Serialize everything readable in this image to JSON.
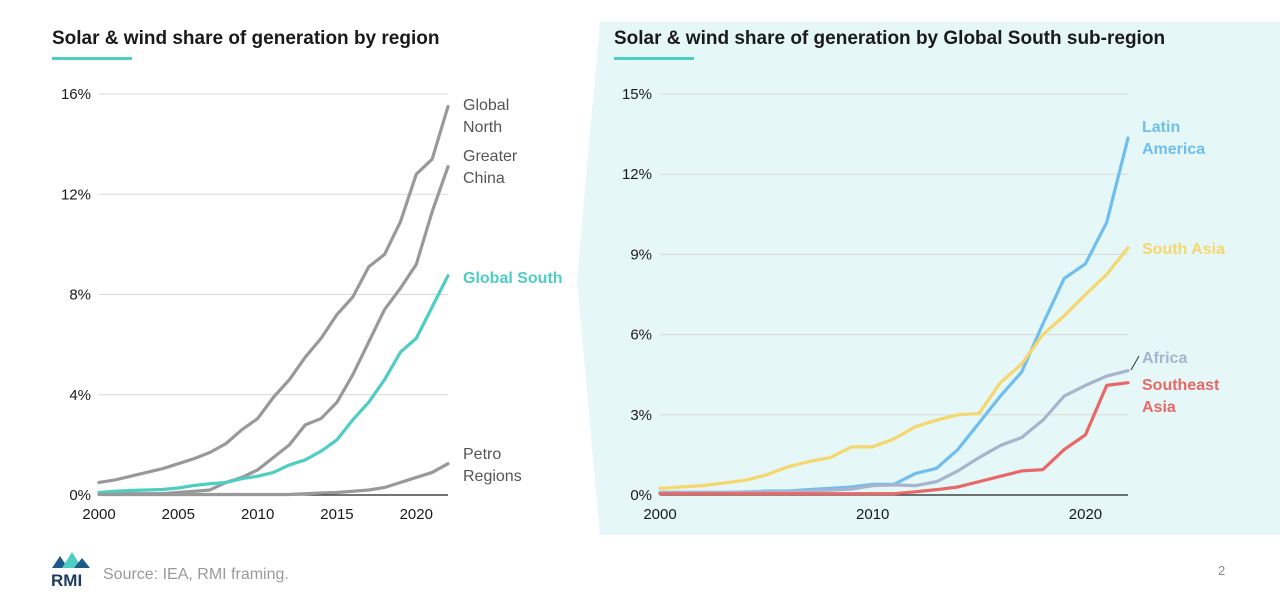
{
  "footer": {
    "source": "Source: IEA, RMI framing.",
    "page_number": "2",
    "logo_text": "RMI"
  },
  "colors": {
    "accent": "#4ecdc4",
    "panel_bg": "#e6f7f7",
    "grey_line": "#999999"
  },
  "chart_data": [
    {
      "type": "line",
      "title": "Solar & wind share of generation by region",
      "xlim": [
        2000,
        2022
      ],
      "ylim": [
        0,
        16
      ],
      "x_ticks": [
        2000,
        2005,
        2010,
        2015,
        2020
      ],
      "x_tick_labels": [
        "2000",
        "2005",
        "2010",
        "2015",
        "2020"
      ],
      "y_ticks": [
        0,
        4,
        8,
        12,
        16
      ],
      "y_tick_labels": [
        "0%",
        "4%",
        "8%",
        "12%",
        "16%"
      ],
      "grid": "horizontal",
      "x": [
        2000,
        2001,
        2002,
        2003,
        2004,
        2005,
        2006,
        2007,
        2008,
        2009,
        2010,
        2011,
        2012,
        2013,
        2014,
        2015,
        2016,
        2017,
        2018,
        2019,
        2020,
        2021,
        2022
      ],
      "series": [
        {
          "name": "Global North",
          "label_lines": [
            "Global",
            "North"
          ],
          "color": "#999999",
          "values": [
            0.5,
            0.6,
            0.75,
            0.9,
            1.05,
            1.25,
            1.45,
            1.7,
            2.05,
            2.6,
            3.05,
            3.9,
            4.6,
            5.5,
            6.25,
            7.2,
            7.9,
            9.1,
            9.6,
            10.9,
            12.8,
            13.4,
            15.5
          ]
        },
        {
          "name": "Greater China",
          "label_lines": [
            "Greater",
            "China"
          ],
          "color": "#999999",
          "values": [
            0.05,
            0.05,
            0.05,
            0.05,
            0.05,
            0.1,
            0.15,
            0.2,
            0.5,
            0.7,
            1.0,
            1.5,
            2.0,
            2.8,
            3.05,
            3.7,
            4.8,
            6.1,
            7.4,
            8.25,
            9.2,
            11.3,
            13.1
          ]
        },
        {
          "name": "Global South",
          "label_lines": [
            "Global South"
          ],
          "color": "#4ecdc4",
          "bold": true,
          "values": [
            0.1,
            0.15,
            0.18,
            0.2,
            0.22,
            0.28,
            0.38,
            0.45,
            0.5,
            0.65,
            0.75,
            0.9,
            1.2,
            1.4,
            1.75,
            2.2,
            3.0,
            3.7,
            4.6,
            5.7,
            6.25,
            7.5,
            8.75
          ]
        },
        {
          "name": "Petro Regions",
          "label_lines": [
            "Petro",
            "Regions"
          ],
          "color": "#999999",
          "values": [
            0.02,
            0.02,
            0.02,
            0.02,
            0.02,
            0.02,
            0.02,
            0.02,
            0.02,
            0.02,
            0.02,
            0.02,
            0.02,
            0.05,
            0.08,
            0.1,
            0.15,
            0.2,
            0.3,
            0.5,
            0.7,
            0.9,
            1.25
          ]
        }
      ]
    },
    {
      "type": "line",
      "title": "Solar & wind share of generation by Global South sub-region",
      "xlim": [
        2000,
        2022
      ],
      "ylim": [
        0,
        15
      ],
      "x_ticks": [
        2000,
        2010,
        2020
      ],
      "x_tick_labels": [
        "2000",
        "2010",
        "2020"
      ],
      "y_ticks": [
        0,
        3,
        6,
        9,
        12,
        15
      ],
      "y_tick_labels": [
        "0%",
        "3%",
        "6%",
        "9%",
        "12%",
        "15%"
      ],
      "grid": "horizontal",
      "x": [
        2000,
        2001,
        2002,
        2003,
        2004,
        2005,
        2006,
        2007,
        2008,
        2009,
        2010,
        2011,
        2012,
        2013,
        2014,
        2015,
        2016,
        2017,
        2018,
        2019,
        2020,
        2021,
        2022
      ],
      "series": [
        {
          "name": "Latin America",
          "label_lines": [
            "Latin",
            "America"
          ],
          "color": "#6fbef0",
          "values": [
            0.1,
            0.1,
            0.1,
            0.1,
            0.1,
            0.15,
            0.15,
            0.2,
            0.25,
            0.3,
            0.4,
            0.4,
            0.8,
            1.0,
            1.7,
            2.7,
            3.7,
            4.6,
            6.4,
            8.1,
            8.65,
            10.2,
            13.35
          ]
        },
        {
          "name": "South Asia",
          "label_lines": [
            "South Asia"
          ],
          "color": "#f5d76e",
          "values": [
            0.25,
            0.3,
            0.35,
            0.45,
            0.55,
            0.75,
            1.05,
            1.25,
            1.4,
            1.8,
            1.8,
            2.1,
            2.55,
            2.8,
            3.0,
            3.05,
            4.2,
            4.9,
            6.0,
            6.7,
            7.5,
            8.25,
            9.25
          ]
        },
        {
          "name": "Africa",
          "label_lines": [
            "Africa"
          ],
          "color": "#a8b4cf",
          "values": [
            0.1,
            0.1,
            0.1,
            0.1,
            0.12,
            0.12,
            0.14,
            0.15,
            0.18,
            0.22,
            0.35,
            0.38,
            0.35,
            0.5,
            0.9,
            1.4,
            1.85,
            2.15,
            2.8,
            3.7,
            4.1,
            4.45,
            4.65
          ]
        },
        {
          "name": "Southeast Asia",
          "label_lines": [
            "Southeast",
            "Asia"
          ],
          "color": "#e86868",
          "values": [
            0.05,
            0.05,
            0.05,
            0.05,
            0.05,
            0.05,
            0.05,
            0.05,
            0.05,
            0.05,
            0.05,
            0.05,
            0.12,
            0.2,
            0.3,
            0.5,
            0.7,
            0.9,
            0.95,
            1.7,
            2.25,
            4.1,
            4.2
          ]
        }
      ]
    }
  ]
}
